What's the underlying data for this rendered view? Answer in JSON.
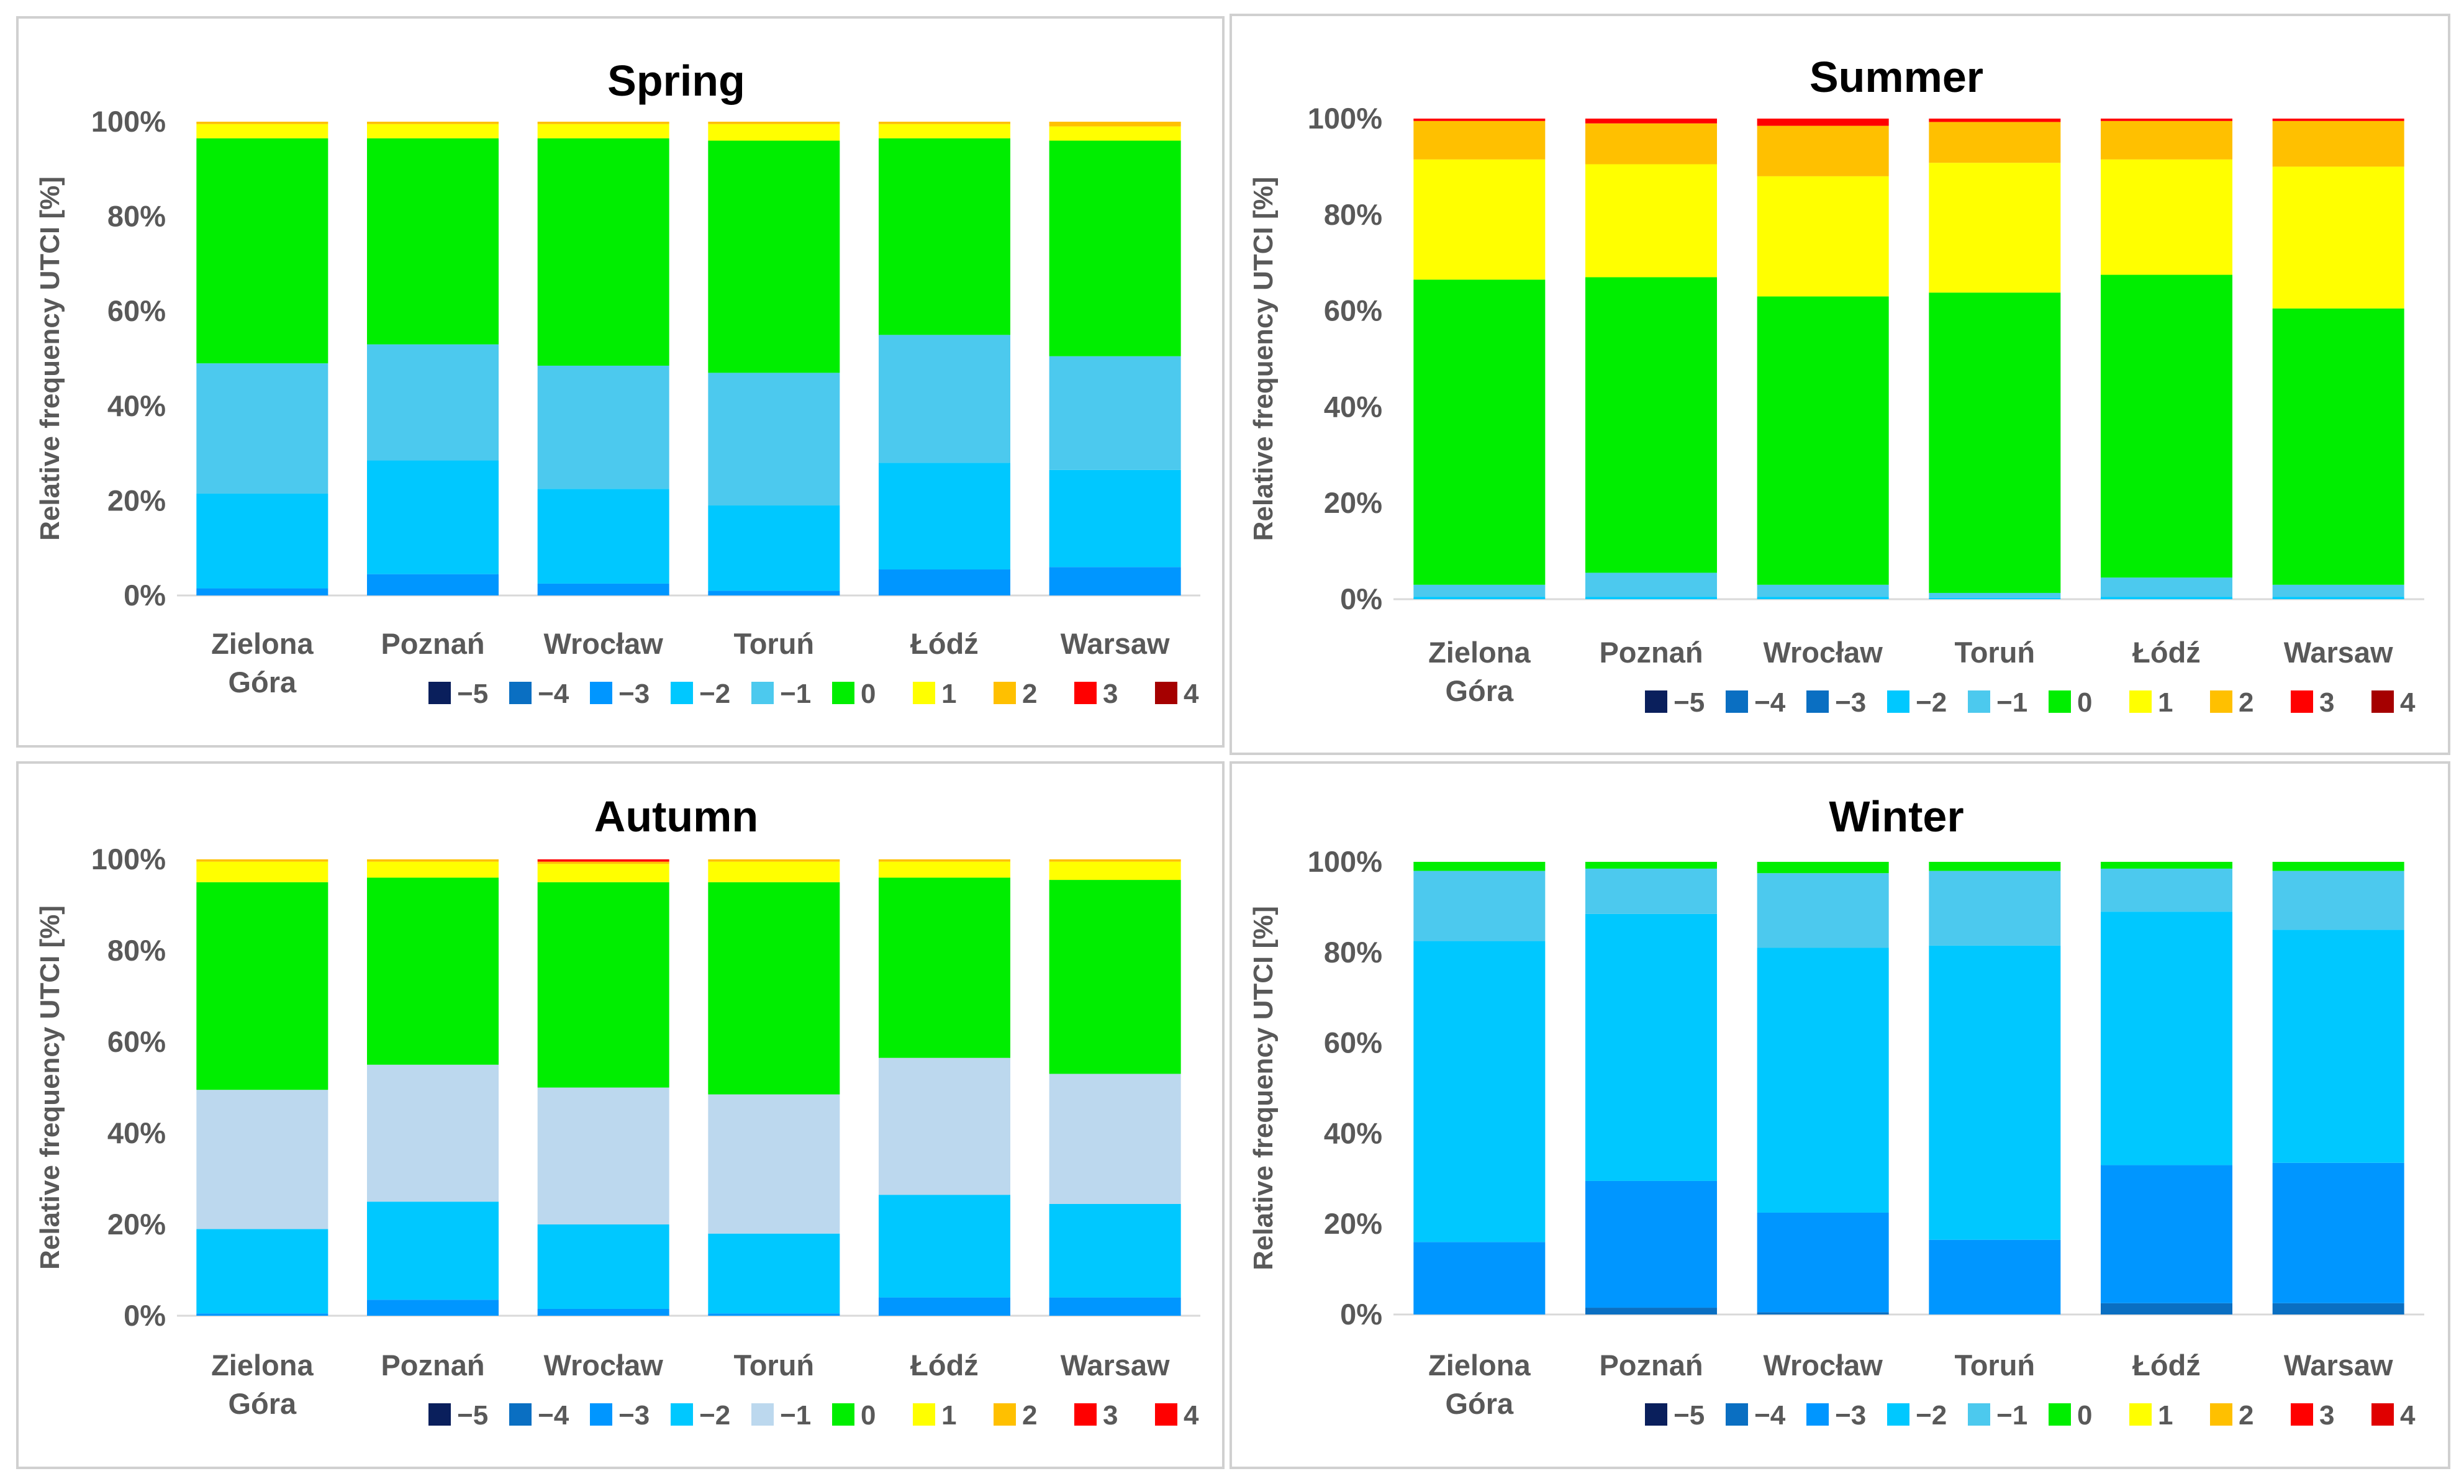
{
  "legend": {
    "classes": [
      "−5",
      "−4",
      "−3",
      "−2",
      "−1",
      "0",
      "1",
      "2",
      "3",
      "4"
    ]
  },
  "colors": {
    "spring": [
      "#0a1f5c",
      "#0a6fc2",
      "#0096ff",
      "#00c8ff",
      "#4cc9ee",
      "#00ee00",
      "#ffff00",
      "#ffc000",
      "#ff0000",
      "#a50000"
    ],
    "summer": [
      "#0a1f5c",
      "#0a6fc2",
      "#0a6fc2",
      "#00c8ff",
      "#4cc9ee",
      "#00ee00",
      "#ffff00",
      "#ffc000",
      "#ff0000",
      "#a50000"
    ],
    "autumn": [
      "#0a1f5c",
      "#0a6fc2",
      "#0096ff",
      "#00c8ff",
      "#bcd8ee",
      "#00ee00",
      "#ffff00",
      "#ffc000",
      "#ff0000",
      "#ff0000"
    ],
    "winter": [
      "#0a1f5c",
      "#0a6fc2",
      "#0096ff",
      "#00c8ff",
      "#4cc9ee",
      "#00ee00",
      "#ffff00",
      "#ffc000",
      "#ff0000",
      "#e00000"
    ]
  },
  "chart_data": [
    {
      "id": "spring",
      "type": "bar",
      "stacked": true,
      "title": "Spring",
      "ylabel": "Relative frequency UTCI [%]",
      "ylim": [
        0,
        100
      ],
      "yticks": [
        "0%",
        "20%",
        "40%",
        "60%",
        "80%",
        "100%"
      ],
      "categories": [
        [
          "Zielona",
          "Góra"
        ],
        [
          "Poznań"
        ],
        [
          "Wrocław"
        ],
        [
          "Toruń"
        ],
        [
          "Łódź"
        ],
        [
          "Warsaw"
        ]
      ],
      "series": [
        {
          "name": "−5",
          "values": [
            0,
            0,
            0,
            0,
            0,
            0
          ]
        },
        {
          "name": "−4",
          "values": [
            0,
            0,
            0,
            0,
            0,
            0
          ]
        },
        {
          "name": "−3",
          "values": [
            1.5,
            4.5,
            2.5,
            1,
            5.5,
            6
          ]
        },
        {
          "name": "−2",
          "values": [
            20,
            24,
            20,
            18,
            22.5,
            20.5
          ]
        },
        {
          "name": "−1",
          "values": [
            27.5,
            24.5,
            26,
            28,
            27,
            24
          ]
        },
        {
          "name": "0",
          "values": [
            47.5,
            43.5,
            48,
            49,
            41.5,
            45.5
          ]
        },
        {
          "name": "1",
          "values": [
            3,
            3,
            3,
            3.5,
            3,
            3
          ]
        },
        {
          "name": "2",
          "values": [
            0.5,
            0.5,
            0.5,
            0.5,
            0.5,
            1
          ]
        },
        {
          "name": "3",
          "values": [
            0,
            0,
            0,
            0,
            0,
            0
          ]
        },
        {
          "name": "4",
          "values": [
            0,
            0,
            0,
            0,
            0,
            0
          ]
        }
      ]
    },
    {
      "id": "summer",
      "type": "bar",
      "stacked": true,
      "title": "Summer",
      "ylabel": "Relative frequency UTCI [%]",
      "ylim": [
        0,
        100
      ],
      "yticks": [
        "0%",
        "20%",
        "40%",
        "60%",
        "80%",
        "100%"
      ],
      "categories": [
        [
          "Zielona",
          "Góra"
        ],
        [
          "Poznań"
        ],
        [
          "Wrocław"
        ],
        [
          "Toruń"
        ],
        [
          "Łódź"
        ],
        [
          "Warsaw"
        ]
      ],
      "series": [
        {
          "name": "−5",
          "values": [
            0,
            0,
            0,
            0,
            0,
            0
          ]
        },
        {
          "name": "−4",
          "values": [
            0,
            0,
            0,
            0,
            0,
            0
          ]
        },
        {
          "name": "−3",
          "values": [
            0,
            0,
            0,
            0,
            0,
            0
          ]
        },
        {
          "name": "−2",
          "values": [
            0.5,
            0.5,
            0.5,
            0.3,
            0.5,
            0.5
          ]
        },
        {
          "name": "−1",
          "values": [
            2.5,
            5,
            2.5,
            1,
            4,
            2.5
          ]
        },
        {
          "name": "0",
          "values": [
            63.5,
            61.5,
            60,
            62.5,
            63,
            57.5
          ]
        },
        {
          "name": "1",
          "values": [
            25,
            23.5,
            25,
            27,
            24,
            29.5
          ]
        },
        {
          "name": "2",
          "values": [
            8,
            8.5,
            10.5,
            8.5,
            8,
            9.5
          ]
        },
        {
          "name": "3",
          "values": [
            0.5,
            1,
            1.5,
            0.7,
            0.5,
            0.5
          ]
        },
        {
          "name": "4",
          "values": [
            0,
            0,
            0,
            0,
            0,
            0
          ]
        }
      ]
    },
    {
      "id": "autumn",
      "type": "bar",
      "stacked": true,
      "title": "Autumn",
      "ylabel": "Relative frequency UTCI [%]",
      "ylim": [
        0,
        100
      ],
      "yticks": [
        "0%",
        "20%",
        "40%",
        "60%",
        "80%",
        "100%"
      ],
      "categories": [
        [
          "Zielona",
          "Góra"
        ],
        [
          "Poznań"
        ],
        [
          "Wrocław"
        ],
        [
          "Toruń"
        ],
        [
          "Łódź"
        ],
        [
          "Warsaw"
        ]
      ],
      "series": [
        {
          "name": "−5",
          "values": [
            0,
            0,
            0,
            0,
            0,
            0
          ]
        },
        {
          "name": "−4",
          "values": [
            0,
            0,
            0,
            0,
            0,
            0
          ]
        },
        {
          "name": "−3",
          "values": [
            0.5,
            3.5,
            1.5,
            0.5,
            4,
            4
          ]
        },
        {
          "name": "−2",
          "values": [
            18.5,
            21.5,
            18.5,
            17.5,
            22.5,
            20.5
          ]
        },
        {
          "name": "−1",
          "values": [
            30.5,
            30,
            30,
            30.5,
            30,
            28.5
          ]
        },
        {
          "name": "0",
          "values": [
            45.5,
            41,
            45,
            46.5,
            39.5,
            42.5
          ]
        },
        {
          "name": "1",
          "values": [
            4.5,
            3.5,
            4,
            4.5,
            3.5,
            4
          ]
        },
        {
          "name": "2",
          "values": [
            0.5,
            0.5,
            0.5,
            0.5,
            0.5,
            0.5
          ]
        },
        {
          "name": "3",
          "values": [
            0,
            0,
            0.5,
            0,
            0,
            0
          ]
        },
        {
          "name": "4",
          "values": [
            0,
            0,
            0,
            0,
            0,
            0
          ]
        }
      ]
    },
    {
      "id": "winter",
      "type": "bar",
      "stacked": true,
      "title": "Winter",
      "ylabel": "Relative frequency UTCI [%]",
      "ylim": [
        0,
        100
      ],
      "yticks": [
        "0%",
        "20%",
        "40%",
        "60%",
        "80%",
        "100%"
      ],
      "categories": [
        [
          "Zielona",
          "Góra"
        ],
        [
          "Poznań"
        ],
        [
          "Wrocław"
        ],
        [
          "Toruń"
        ],
        [
          "Łódź"
        ],
        [
          "Warsaw"
        ]
      ],
      "series": [
        {
          "name": "−5",
          "values": [
            0,
            0,
            0,
            0,
            0,
            0
          ]
        },
        {
          "name": "−4",
          "values": [
            0,
            1.5,
            0.5,
            0,
            2.5,
            2.5
          ]
        },
        {
          "name": "−3",
          "values": [
            16,
            28,
            22,
            16.5,
            30.5,
            31
          ]
        },
        {
          "name": "−2",
          "values": [
            66.5,
            59,
            58.5,
            65,
            56,
            51.5
          ]
        },
        {
          "name": "−1",
          "values": [
            15.5,
            10,
            16.5,
            16.5,
            9.5,
            13
          ]
        },
        {
          "name": "0",
          "values": [
            2,
            1.5,
            2.5,
            2,
            1.5,
            2
          ]
        },
        {
          "name": "1",
          "values": [
            0,
            0,
            0,
            0,
            0,
            0
          ]
        },
        {
          "name": "2",
          "values": [
            0,
            0,
            0,
            0,
            0,
            0
          ]
        },
        {
          "name": "3",
          "values": [
            0,
            0,
            0,
            0,
            0,
            0
          ]
        },
        {
          "name": "4",
          "values": [
            0,
            0,
            0,
            0,
            0,
            0
          ]
        }
      ]
    }
  ]
}
